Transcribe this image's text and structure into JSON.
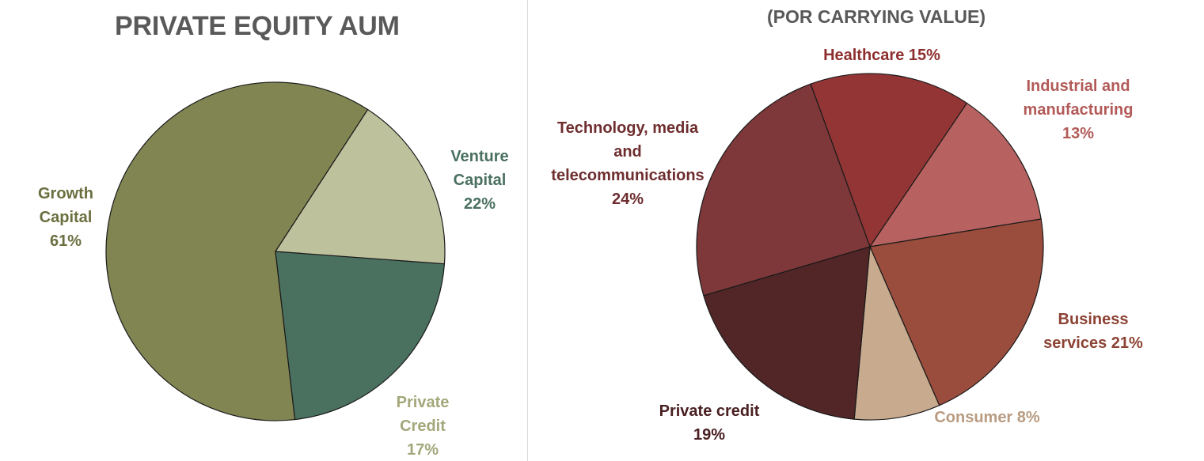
{
  "chart_data": [
    {
      "type": "pie",
      "title": "PRIVATE EQUITY AUM",
      "slices": [
        {
          "label": "Growth Capital",
          "value": 61,
          "value_label": "61%",
          "color": "#818552",
          "text_color": "#6b6f3f"
        },
        {
          "label": "Venture Capital",
          "value": 22,
          "value_label": "22%",
          "color": "#4a7060",
          "text_color": "#4a7060"
        },
        {
          "label": "Private Credit",
          "value": 17,
          "value_label": "17%",
          "color": "#bdc19c",
          "text_color": "#a3a77a"
        }
      ]
    },
    {
      "type": "pie",
      "title": "(POR CARRYING VALUE)",
      "slices": [
        {
          "label": "Healthcare",
          "value": 15,
          "value_label": "15%",
          "color": "#933535",
          "text_color": "#8e2f2f"
        },
        {
          "label": "Industrial and manufacturing",
          "value": 13,
          "value_label": "13%",
          "color": "#b76260",
          "text_color": "#b25a57"
        },
        {
          "label": "Business services",
          "value": 21,
          "value_label": "21%",
          "color": "#9a4d3d",
          "text_color": "#8c4334"
        },
        {
          "label": "Consumer",
          "value": 8,
          "value_label": "8%",
          "color": "#c8aa8e",
          "text_color": "#b89b80"
        },
        {
          "label": "Private credit",
          "value": 19,
          "value_label": "19%",
          "color": "#522527",
          "text_color": "#4a2022"
        },
        {
          "label": "Technology, media and telecommunications",
          "value": 24,
          "value_label": "24%",
          "color": "#7e3839",
          "text_color": "#6e2d2e"
        }
      ]
    }
  ]
}
